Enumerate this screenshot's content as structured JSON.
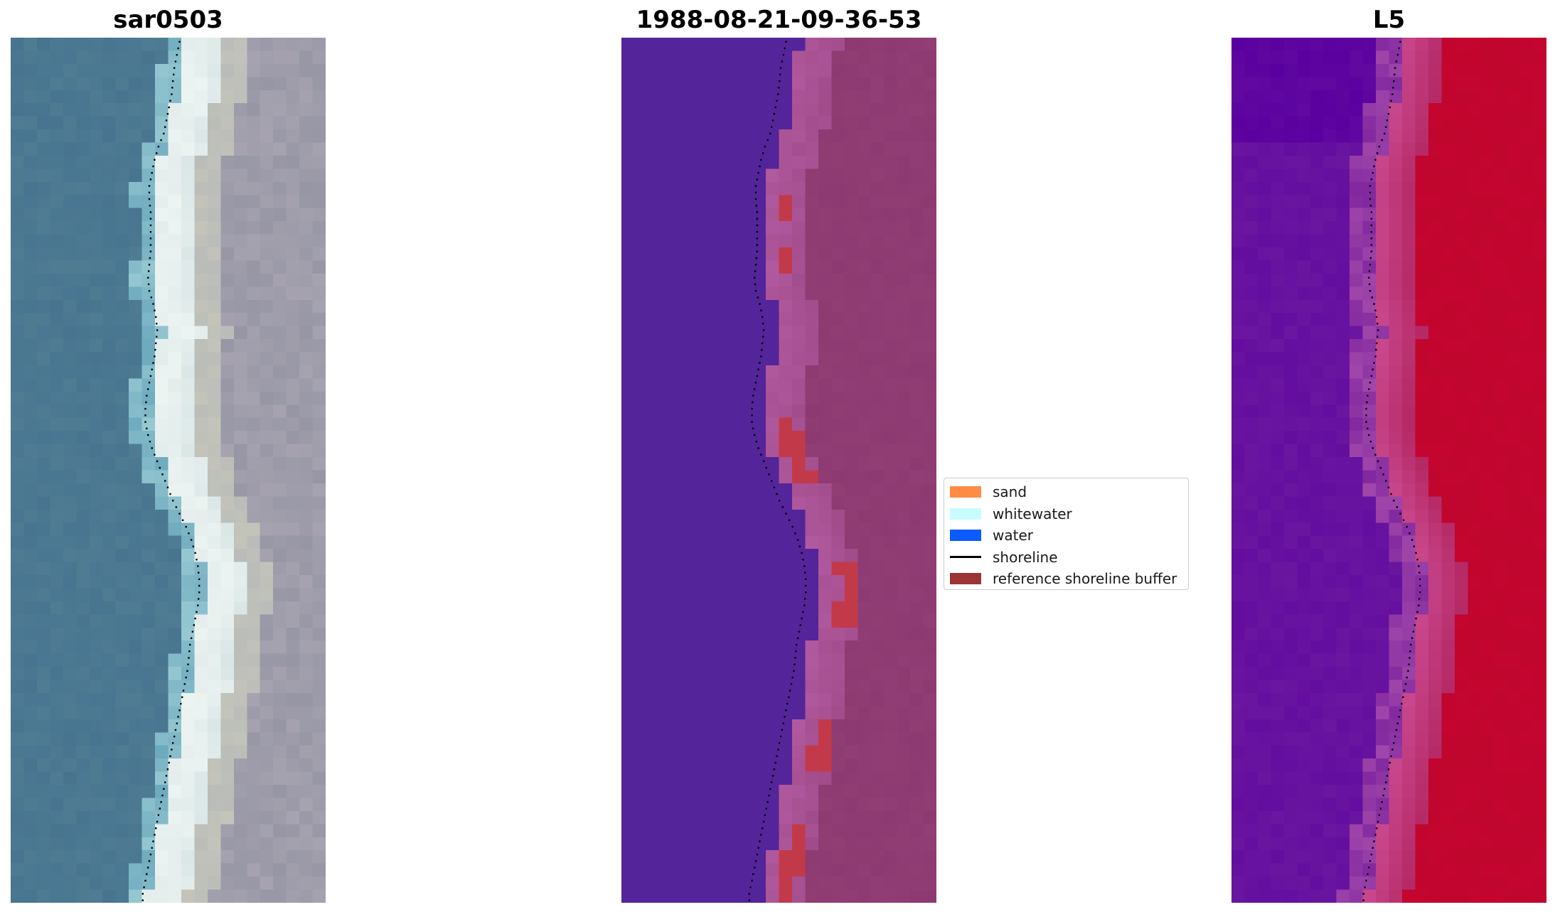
{
  "panels": [
    {
      "id": "rgb",
      "title": "sar0503"
    },
    {
      "id": "classification",
      "title": "1988-08-21-09-36-53"
    },
    {
      "id": "mndwi",
      "title": "L5"
    }
  ],
  "legend": {
    "items": [
      {
        "label": "sand",
        "kind": "patch",
        "color": "#ff8c42"
      },
      {
        "label": "whitewater",
        "kind": "patch",
        "color": "#c8fcff"
      },
      {
        "label": "water",
        "kind": "patch",
        "color": "#0b5cff"
      },
      {
        "label": "shoreline",
        "kind": "line",
        "color": "#000000"
      },
      {
        "label": "reference shoreline buffer",
        "kind": "patch",
        "color": "#9b3535"
      }
    ]
  },
  "colors": {
    "classification_water": "#54249a",
    "classification_land": "#8d3a72",
    "classification_whitewater": "#b25aa0",
    "classification_buffer": "#c23a4a",
    "mndwi_water": "#6a16a0",
    "mndwi_land": "#c0062e",
    "shoreline": "#000000"
  }
}
